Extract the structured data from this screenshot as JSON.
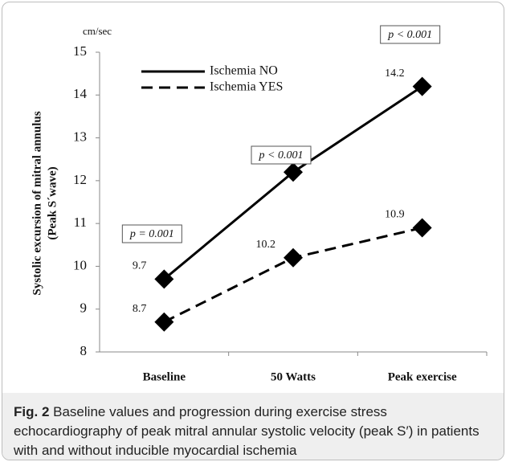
{
  "chart_data": {
    "type": "line",
    "y_unit": "cm/sec",
    "ylabel": [
      "Systolic excursion of mitral annulus",
      "(Peak S´wave)"
    ],
    "categories": [
      "Baseline",
      "50 Watts",
      "Peak exercise"
    ],
    "series": [
      {
        "name": "Ischemia NO",
        "color": "#000000",
        "line_style": "solid",
        "values": [
          9.7,
          12.2,
          14.2
        ]
      },
      {
        "name": "Ischemia YES",
        "color": "#000000",
        "line_style": "dashed",
        "values": [
          8.7,
          10.2,
          10.9
        ]
      }
    ],
    "annotations": [
      "p = 0.001",
      "p < 0.001",
      "p < 0.001"
    ],
    "ylim": [
      8,
      15
    ],
    "yticks": [
      8,
      9,
      10,
      11,
      12,
      13,
      14,
      15
    ],
    "legend": "upper left",
    "grid": false
  },
  "caption": {
    "label": "Fig. 2",
    "text": "Baseline values and progression during exercise stress echocardiography of peak mitral annular systolic velocity (peak S′) in patients with and without inducible myocardial ischemia"
  }
}
